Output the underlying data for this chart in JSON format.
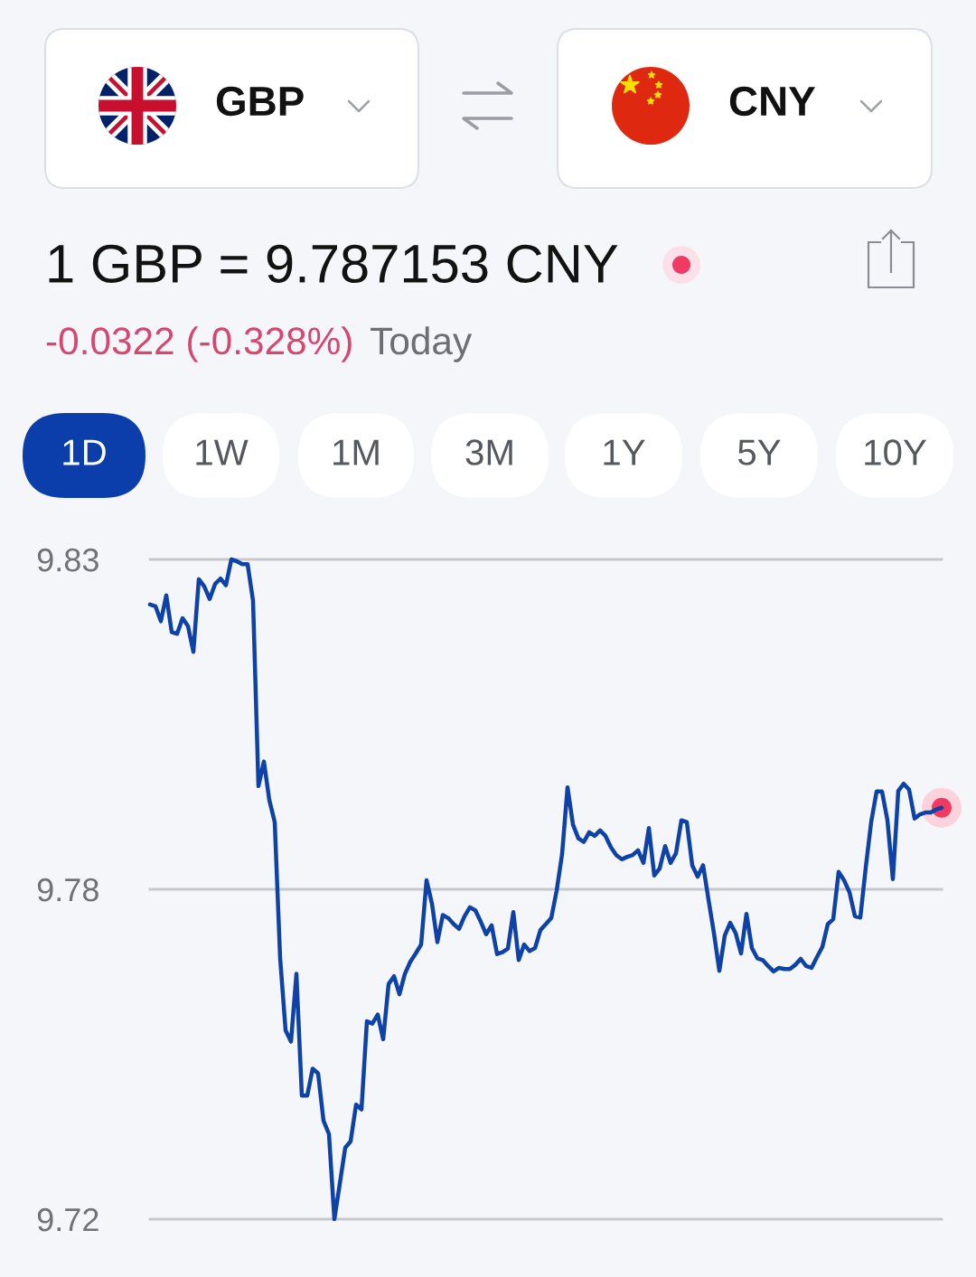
{
  "chart_data": {
    "type": "line",
    "title": "1 GBP = 9.787153 CNY",
    "subtitle": "-0.0322 (-0.328%)",
    "annotations": [
      "GBP",
      "CNY",
      "Today",
      "1D",
      "1W",
      "1M",
      "3M",
      "1Y",
      "5Y",
      "10Y"
    ],
    "categories": [
      null,
      null,
      null,
      null,
      null,
      null,
      null,
      null,
      null,
      null,
      null,
      null,
      null,
      null,
      null,
      null,
      null,
      null,
      null,
      null,
      null,
      null,
      null,
      null,
      null,
      null,
      null,
      null,
      null,
      null,
      null,
      null,
      null,
      null,
      null,
      null,
      null,
      null,
      null,
      null,
      null,
      null,
      null,
      null,
      null,
      null,
      null,
      null,
      null,
      null,
      null,
      null,
      null,
      null,
      null,
      null,
      null,
      null,
      null,
      null,
      null,
      null,
      null,
      null,
      null,
      null,
      null,
      null,
      null,
      null,
      null,
      null,
      null,
      null,
      null,
      null,
      null,
      null,
      null,
      null,
      null,
      null,
      null,
      null,
      null,
      null,
      null,
      null,
      null,
      null,
      null,
      null,
      null,
      null,
      null,
      null,
      null,
      null,
      null,
      null,
      null,
      null,
      null,
      null,
      null,
      null,
      null,
      null,
      null,
      null,
      null,
      null,
      null,
      null,
      null,
      null,
      null,
      null,
      null,
      null,
      null,
      null,
      null,
      null,
      null,
      null,
      null,
      null,
      null,
      null,
      null,
      null,
      null,
      null,
      null,
      null,
      null,
      null,
      null,
      null,
      null,
      null,
      null,
      null,
      null,
      null,
      null
    ],
    "series": [
      {
        "color": "#0e42a6",
        "values": [
          9.8225,
          9.8222,
          9.8197,
          9.824,
          9.8179,
          9.8176,
          9.8202,
          9.8189,
          9.8146,
          9.8267,
          9.8255,
          9.8234,
          9.8259,
          9.8268,
          9.8257,
          9.83,
          9.8297,
          9.8292,
          9.8292,
          9.8231,
          9.7922,
          9.7963,
          9.7899,
          9.7862,
          9.7635,
          9.7515,
          9.7496,
          9.7609,
          9.7406,
          9.7406,
          9.7451,
          9.7443,
          9.7364,
          9.7342,
          9.72,
          9.7259,
          9.7319,
          9.733,
          9.7391,
          9.7383,
          9.753,
          9.7526,
          9.7541,
          9.75,
          9.7592,
          9.7605,
          9.7575,
          9.7609,
          9.7629,
          9.7643,
          9.7658,
          9.7765,
          9.7726,
          9.7662,
          9.7707,
          9.7702,
          9.7692,
          9.7684,
          9.7705,
          9.772,
          9.7715,
          9.7696,
          9.7675,
          9.769,
          9.7642,
          9.7645,
          9.7651,
          9.7712,
          9.7632,
          9.7658,
          9.7647,
          9.7652,
          9.7682,
          9.7692,
          9.7702,
          9.7748,
          9.7809,
          9.792,
          9.7858,
          9.7835,
          9.7829,
          9.7845,
          9.7839,
          9.7848,
          9.7839,
          9.782,
          9.7807,
          9.78,
          9.7804,
          9.7807,
          9.7815,
          9.7794,
          9.7852,
          9.7773,
          9.7785,
          9.7822,
          9.7794,
          9.781,
          9.7865,
          9.7862,
          9.779,
          9.7771,
          9.779,
          9.7733,
          9.7677,
          9.7614,
          9.7673,
          9.7694,
          9.7677,
          9.7643,
          9.7709,
          9.7652,
          9.7635,
          9.7632,
          9.7622,
          9.7613,
          9.7619,
          9.7617,
          9.7617,
          9.7624,
          9.7634,
          9.7622,
          9.7619,
          9.7637,
          9.7654,
          9.7692,
          9.77,
          9.7779,
          9.7765,
          9.7745,
          9.7705,
          9.7703,
          9.7786,
          9.7862,
          9.7913,
          9.7913,
          9.7865,
          9.7767,
          9.7914,
          9.7926,
          9.7916,
          9.7868,
          9.7875,
          9.7878,
          9.7878,
          9.7883,
          9.7886
        ]
      },
      {
        "type": "scatter",
        "color": "#f03a64",
        "marker": "circle",
        "values": [
          null,
          null,
          null,
          null,
          null,
          null,
          null,
          null,
          null,
          null,
          null,
          null,
          null,
          null,
          null,
          null,
          null,
          null,
          null,
          null,
          null,
          null,
          null,
          null,
          null,
          null,
          null,
          null,
          null,
          null,
          null,
          null,
          null,
          null,
          null,
          null,
          null,
          null,
          null,
          null,
          null,
          null,
          null,
          null,
          null,
          null,
          null,
          null,
          null,
          null,
          null,
          null,
          null,
          null,
          null,
          null,
          null,
          null,
          null,
          null,
          null,
          null,
          null,
          null,
          null,
          null,
          null,
          null,
          null,
          null,
          null,
          null,
          null,
          null,
          null,
          null,
          null,
          null,
          null,
          null,
          null,
          null,
          null,
          null,
          null,
          null,
          null,
          null,
          null,
          null,
          null,
          null,
          null,
          null,
          null,
          null,
          null,
          null,
          null,
          null,
          null,
          null,
          null,
          null,
          null,
          null,
          null,
          null,
          null,
          null,
          null,
          null,
          null,
          null,
          null,
          null,
          null,
          null,
          null,
          null,
          null,
          null,
          null,
          null,
          null,
          null,
          null,
          null,
          null,
          null,
          null,
          null,
          null,
          null,
          null,
          null,
          null,
          null,
          null,
          null,
          null,
          null,
          null,
          null,
          null,
          null,
          9.7886
        ]
      }
    ],
    "ylim": [
      9.72,
      9.83
    ],
    "yticks": [
      9.72,
      {
        "value": 9.775,
        "label": "9.78"
      },
      9.83
    ],
    "grid": "y",
    "tick_labels": "y"
  }
}
